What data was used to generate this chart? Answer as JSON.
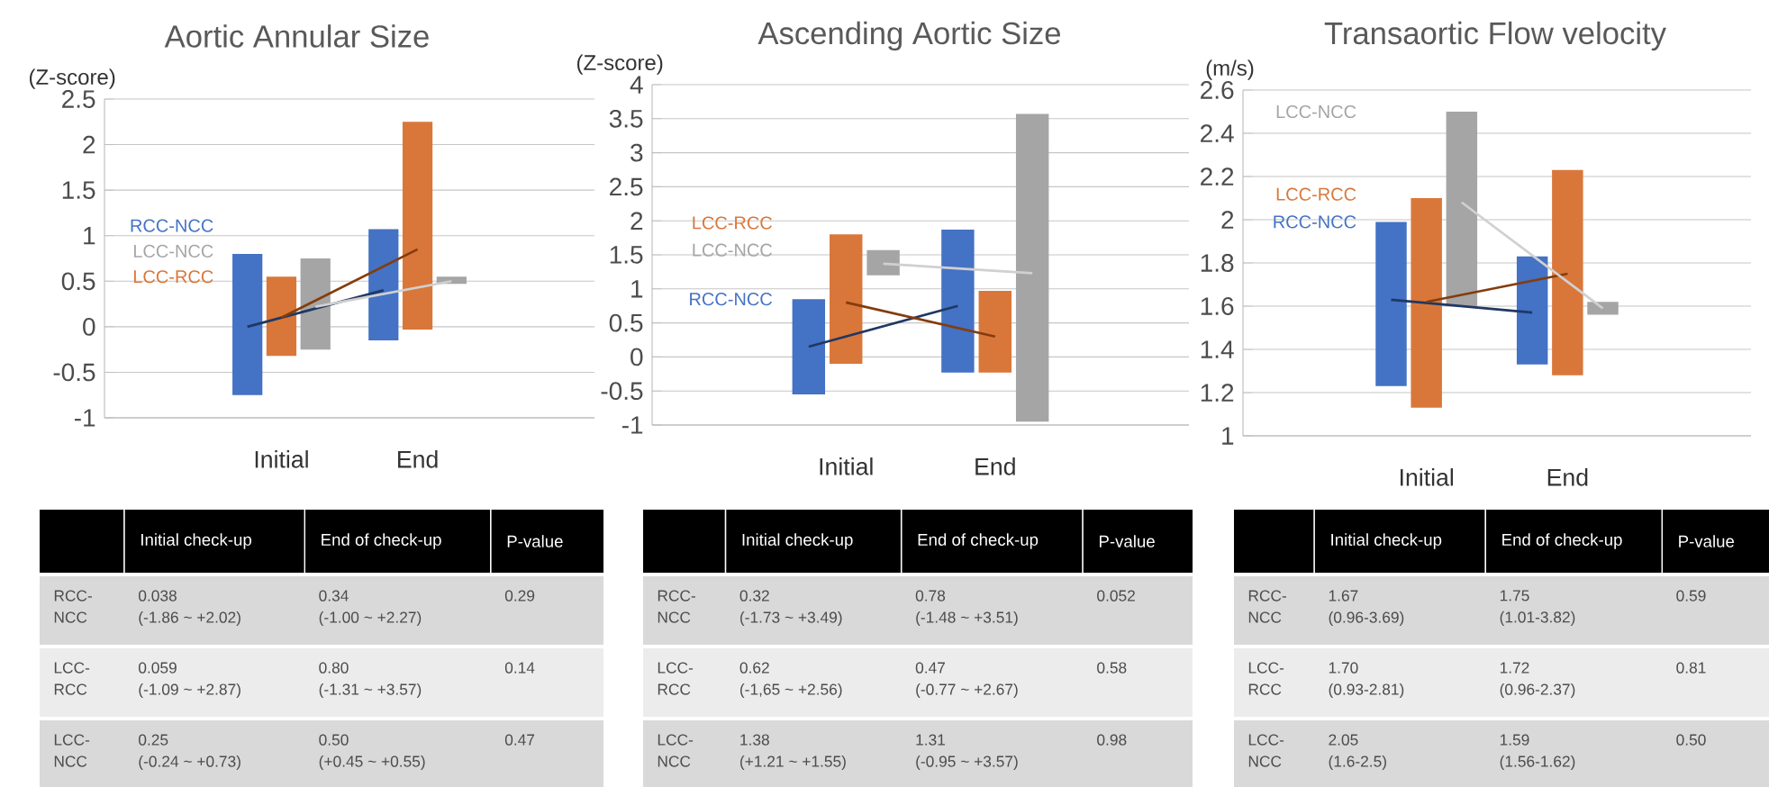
{
  "chart_data": [
    {
      "type": "bar",
      "title": "Aortic Annular Size",
      "ylabel": "(Z-score)",
      "categories": [
        "Initial",
        "End"
      ],
      "ylim": [
        -1,
        2.5
      ],
      "yticks": [
        -1,
        -0.5,
        0,
        0.5,
        1,
        1.5,
        2,
        2.5
      ],
      "grid": "y",
      "series": [
        {
          "name": "RCC-NCC",
          "color": "#4472c4",
          "base": [
            -0.75,
            -0.15
          ],
          "values": [
            1.55,
            1.22
          ]
        },
        {
          "name": "LCC-RCC",
          "color": "#d9773a",
          "base": [
            -0.32,
            -0.03
          ],
          "values": [
            0.87,
            2.28
          ]
        },
        {
          "name": "LCC-NCC",
          "color": "#a5a5a5",
          "base": [
            -0.25,
            0.47
          ],
          "values": [
            1.0,
            0.08
          ]
        },
        {
          "type": "line",
          "color": "#1f3864",
          "values": [
            0.0,
            0.4
          ]
        },
        {
          "type": "line",
          "color": "#843c0c",
          "values": [
            0.1,
            0.85
          ]
        },
        {
          "type": "line",
          "color": "#d0d0d0",
          "values": [
            0.22,
            0.5
          ]
        }
      ]
    },
    {
      "type": "bar",
      "title": "Ascending Aortic Size",
      "ylabel": "(Z-score)",
      "categories": [
        "Initial",
        "End"
      ],
      "ylim": [
        -1,
        4
      ],
      "yticks": [
        -1,
        -0.5,
        0,
        0.5,
        1,
        1.5,
        2,
        2.5,
        3,
        3.5,
        4
      ],
      "grid": "y",
      "series": [
        {
          "name": "RCC-NCC",
          "color": "#4472c4",
          "base": [
            -0.55,
            -0.23
          ],
          "values": [
            1.4,
            2.1
          ]
        },
        {
          "name": "LCC-RCC",
          "color": "#d9773a",
          "base": [
            -0.1,
            -0.23
          ],
          "values": [
            1.9,
            1.2
          ]
        },
        {
          "name": "LCC-NCC",
          "color": "#a5a5a5",
          "base": [
            1.2,
            -0.95
          ],
          "values": [
            0.37,
            4.52
          ]
        },
        {
          "type": "line",
          "color": "#1f3864",
          "values": [
            0.15,
            0.75
          ]
        },
        {
          "type": "line",
          "color": "#843c0c",
          "values": [
            0.8,
            0.3
          ]
        },
        {
          "type": "line",
          "color": "#d0d0d0",
          "values": [
            1.37,
            1.23
          ]
        }
      ]
    },
    {
      "type": "bar",
      "title": "Transaortic Flow velocity",
      "ylabel": "(m/s)",
      "categories": [
        "Initial",
        "End"
      ],
      "ylim": [
        1,
        2.6
      ],
      "yticks": [
        1,
        1.2,
        1.4,
        1.6,
        1.8,
        2,
        2.2,
        2.4,
        2.6
      ],
      "grid": "y",
      "series": [
        {
          "name": "RCC-NCC",
          "color": "#4472c4",
          "base": [
            1.23,
            1.33
          ],
          "values": [
            0.76,
            0.5
          ]
        },
        {
          "name": "LCC-RCC",
          "color": "#d9773a",
          "base": [
            1.13,
            1.28
          ],
          "values": [
            0.97,
            0.95
          ]
        },
        {
          "name": "LCC-NCC",
          "color": "#a5a5a5",
          "base": [
            1.6,
            1.56
          ],
          "values": [
            0.9,
            0.06
          ]
        },
        {
          "type": "line",
          "color": "#1f3864",
          "values": [
            1.63,
            1.57
          ]
        },
        {
          "type": "line",
          "color": "#843c0c",
          "values": [
            1.62,
            1.75
          ]
        },
        {
          "type": "line",
          "color": "#d0d0d0",
          "values": [
            2.08,
            1.59
          ]
        }
      ]
    },
    {
      "type": "other",
      "categories": [
        null,
        "Initial check-up",
        "End of check-up",
        "P-value"
      ],
      "y_categories": [
        "RCC-NCC",
        "LCC-RCC",
        "LCC-NCC"
      ],
      "cell_labels": [
        [
          [
            "0.038",
            "(-1.86 ~ +2.02)"
          ],
          [
            "0.34",
            "(-1.00 ~ +2.27)"
          ],
          [
            "0.29"
          ]
        ],
        [
          [
            "0.059",
            "(-1.09 ~ +2.87)"
          ],
          [
            "0.80",
            "(-1.31 ~ +3.57)"
          ],
          [
            "0.14"
          ]
        ],
        [
          [
            "0.25",
            "(-0.24 ~ +0.73)"
          ],
          [
            "0.50",
            "(+0.45 ~ +0.55)"
          ],
          [
            "0.47"
          ]
        ]
      ]
    },
    {
      "type": "other",
      "categories": [
        null,
        "Initial check-up",
        "End of check-up",
        "P-value"
      ],
      "y_categories": [
        "RCC-NCC",
        "LCC-RCC",
        "LCC-NCC"
      ],
      "cell_labels": [
        [
          [
            "0.32",
            "(-1.73 ~ +3.49)"
          ],
          [
            "0.78",
            "(-1.48 ~ +3.51)"
          ],
          [
            "0.052"
          ]
        ],
        [
          [
            "0.62",
            "(-1,65 ~ +2.56)"
          ],
          [
            "0.47",
            "(-0.77 ~ +2.67)"
          ],
          [
            "0.58"
          ]
        ],
        [
          [
            "1.38",
            "(+1.21 ~ +1.55)"
          ],
          [
            "1.31",
            "(-0.95 ~ +3.57)"
          ],
          [
            "0.98"
          ]
        ]
      ]
    },
    {
      "type": "other",
      "categories": [
        null,
        "Initial check-up",
        "End of check-up",
        "P-value"
      ],
      "y_categories": [
        "RCC-NCC",
        "LCC-RCC",
        "LCC-NCC"
      ],
      "cell_labels": [
        [
          [
            "1.67",
            "(0.96-3.69)"
          ],
          [
            "1.75",
            "(1.01-3.82)"
          ],
          [
            "0.59"
          ]
        ],
        [
          [
            "1.70",
            "(0.93-2.81)"
          ],
          [
            "1.72",
            "(0.96-2.37)"
          ],
          [
            "0.81"
          ]
        ],
        [
          [
            "2.05",
            "(1.6-2.5)"
          ],
          [
            "1.59",
            "(1.56-1.62)"
          ],
          [
            "0.50"
          ]
        ]
      ]
    }
  ]
}
